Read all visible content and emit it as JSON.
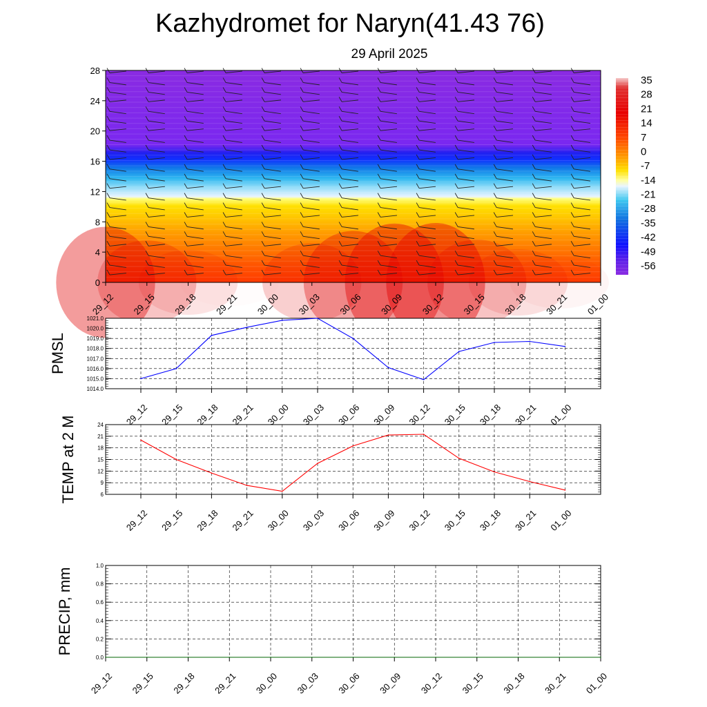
{
  "title": "Kazhydromet for Naryn(41.43 76)",
  "subtitle": "29 April 2025",
  "chart_data": [
    {
      "type": "heatmap",
      "name": "temperature-wind-profile",
      "x_labels": [
        "29_12",
        "29_15",
        "29_18",
        "29_21",
        "30_00",
        "30_03",
        "30_06",
        "30_09",
        "30_12",
        "30_15",
        "30_18",
        "30_21",
        "01_00"
      ],
      "y_ticks": [
        "0",
        "4",
        "8",
        "12",
        "16",
        "20",
        "24",
        "28"
      ],
      "ylim": [
        0,
        28
      ],
      "colorbar": {
        "labels": [
          "35",
          "28",
          "21",
          "14",
          "7",
          "0",
          "-7",
          "-14",
          "-21",
          "-28",
          "-35",
          "-42",
          "-49",
          "-56"
        ],
        "range": [
          -60,
          38
        ]
      },
      "layers": [
        {
          "y": 0,
          "t": 22
        },
        {
          "y": 2,
          "t": 17
        },
        {
          "y": 4,
          "t": 12
        },
        {
          "y": 6,
          "t": 7
        },
        {
          "y": 8,
          "t": 2
        },
        {
          "y": 10,
          "t": -4
        },
        {
          "y": 11,
          "t": -10
        },
        {
          "y": 12,
          "t": -20
        },
        {
          "y": 13.5,
          "t": -30
        },
        {
          "y": 15,
          "t": -42
        },
        {
          "y": 16.5,
          "t": -55
        },
        {
          "y": 17.5,
          "t": -60
        },
        {
          "y": 19,
          "t": -62
        },
        {
          "y": 28,
          "t": -62
        }
      ],
      "surface_temps": [
        20,
        15,
        11.5,
        8.3,
        7,
        14,
        18.5,
        21.2,
        21.4,
        15.3,
        11.8,
        9.2,
        7.2
      ]
    },
    {
      "type": "line",
      "name": "PMSL",
      "ylabel": "PMSL",
      "x_labels": [
        "29_12",
        "29_15",
        "29_18",
        "29_21",
        "30_00",
        "30_03",
        "30_06",
        "30_09",
        "30_12",
        "30_15",
        "30_18",
        "30_21",
        "01_00"
      ],
      "y_ticks": [
        "1014.0",
        "1015.0",
        "1016.0",
        "1017.0",
        "1018.0",
        "1019.0",
        "1020.0",
        "1021.0"
      ],
      "ylim": [
        1014,
        1021
      ],
      "color": "#0000ff",
      "values": [
        1015.0,
        1016.0,
        1019.3,
        1020.1,
        1020.8,
        1021.0,
        1019.0,
        1016.1,
        1014.9,
        1017.7,
        1018.6,
        1018.7,
        1018.2
      ]
    },
    {
      "type": "line",
      "name": "TEMP",
      "ylabel": "TEMP at 2 M",
      "x_labels": [
        "29_12",
        "29_15",
        "29_18",
        "29_21",
        "30_00",
        "30_03",
        "30_06",
        "30_09",
        "30_12",
        "30_15",
        "30_18",
        "30_21",
        "01_00"
      ],
      "y_ticks": [
        "6",
        "9",
        "12",
        "15",
        "18",
        "21",
        "24"
      ],
      "ylim": [
        6,
        24
      ],
      "color": "#ff0000",
      "values": [
        20.0,
        15.0,
        11.5,
        8.3,
        6.8,
        14.0,
        18.5,
        21.3,
        21.5,
        15.3,
        11.8,
        9.3,
        7.1
      ]
    },
    {
      "type": "line",
      "name": "PRECIP",
      "ylabel": "PRECIP, mm",
      "x_labels": [
        "29_12",
        "29_15",
        "29_18",
        "29_21",
        "30_00",
        "30_03",
        "30_06",
        "30_09",
        "30_12",
        "30_15",
        "30_18",
        "30_21",
        "01_00"
      ],
      "y_ticks": [
        "0.0",
        "0.2",
        "0.4",
        "0.6",
        "0.8",
        "1.0"
      ],
      "ylim": [
        0,
        1
      ],
      "color": "#006400",
      "values": [
        0,
        0,
        0,
        0,
        0,
        0,
        0,
        0,
        0,
        0,
        0,
        0,
        0
      ]
    }
  ]
}
